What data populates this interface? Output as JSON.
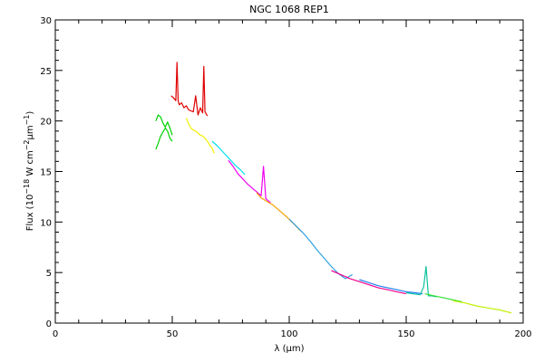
{
  "chart_data": {
    "type": "line",
    "title": "NGC 1068 REP1",
    "xlabel": "λ (μm)",
    "ylabel_prefix": "Flux (10",
    "ylabel_exp1": "−18",
    "ylabel_mid": " W cm",
    "ylabel_exp2": "−2",
    "ylabel_unit": "μm",
    "ylabel_exp3": "−1",
    "ylabel_suffix": ")",
    "xlim": [
      0,
      200
    ],
    "ylim": [
      0,
      30
    ],
    "xticks": [
      0,
      50,
      100,
      150,
      200
    ],
    "yticks": [
      0,
      5,
      10,
      15,
      20,
      25,
      30
    ],
    "grid": false,
    "series": [
      {
        "color": "#00d000",
        "x": [
          43,
          44,
          45,
          46,
          47,
          48,
          49,
          50
        ],
        "y": [
          20.0,
          20.6,
          20.4,
          19.8,
          19.4,
          19.9,
          19.3,
          18.6
        ]
      },
      {
        "color": "#00d000",
        "x": [
          43,
          44,
          45,
          46,
          47,
          48,
          49,
          50
        ],
        "y": [
          17.2,
          17.8,
          18.5,
          18.9,
          19.3,
          19.0,
          18.3,
          18.0
        ]
      },
      {
        "color": "#e00000",
        "x": [
          49.5,
          50.5,
          51.5,
          52,
          52.5,
          53,
          54,
          55,
          56,
          57,
          58,
          59,
          60,
          61,
          62,
          63,
          63.5,
          64,
          65
        ],
        "y": [
          22.5,
          22.3,
          22.0,
          25.8,
          22.0,
          21.6,
          21.8,
          21.3,
          21.5,
          21.1,
          21.0,
          20.9,
          22.5,
          20.6,
          21.3,
          20.8,
          25.4,
          20.9,
          20.5
        ]
      },
      {
        "color": "#f0f000",
        "x": [
          56,
          57,
          58,
          59,
          60,
          61,
          62,
          63,
          64,
          65,
          66,
          67,
          68
        ],
        "y": [
          20.3,
          19.7,
          19.3,
          19.1,
          19.0,
          18.8,
          18.6,
          18.5,
          18.3,
          18.0,
          17.6,
          17.3,
          16.8
        ]
      },
      {
        "color": "#00e0f0",
        "x": [
          67,
          69,
          71,
          73,
          75,
          77,
          79,
          81
        ],
        "y": [
          18.0,
          17.6,
          17.1,
          16.6,
          16.1,
          15.6,
          15.2,
          14.7
        ]
      },
      {
        "color": "#f000f0",
        "x": [
          74,
          76,
          78,
          80,
          82,
          84,
          86,
          88,
          89,
          90,
          92
        ],
        "y": [
          16.1,
          15.5,
          14.8,
          14.3,
          13.8,
          13.4,
          13.0,
          12.6,
          15.5,
          12.3,
          11.9
        ]
      },
      {
        "color": "#f0a000",
        "x": [
          86,
          88,
          90,
          93,
          96,
          99,
          102,
          105
        ],
        "y": [
          12.9,
          12.4,
          12.1,
          11.7,
          11.1,
          10.5,
          9.8,
          9.1
        ]
      },
      {
        "color": "#30a0e0",
        "x": [
          100,
          103,
          106,
          109,
          112,
          115,
          118,
          121,
          124,
          127
        ],
        "y": [
          10.3,
          9.6,
          8.9,
          8.1,
          7.2,
          6.4,
          5.6,
          4.9,
          4.4,
          4.8
        ]
      },
      {
        "color": "#f00090",
        "x": [
          118,
          122,
          126,
          130,
          134,
          138,
          142,
          146,
          150
        ],
        "y": [
          5.2,
          4.8,
          4.4,
          4.1,
          3.8,
          3.5,
          3.3,
          3.1,
          2.9
        ]
      },
      {
        "color": "#2080f0",
        "x": [
          130,
          134,
          138,
          142,
          146,
          150,
          154,
          157
        ],
        "y": [
          4.3,
          4.0,
          3.7,
          3.5,
          3.3,
          3.1,
          3.0,
          2.9
        ]
      },
      {
        "color": "#10c0a0",
        "x": [
          150,
          153,
          156,
          157.5,
          158.5,
          159.5,
          161,
          163
        ],
        "y": [
          3.0,
          2.9,
          2.8,
          3.6,
          5.6,
          2.7,
          2.7,
          2.6
        ]
      },
      {
        "color": "#30e030",
        "x": [
          158,
          162,
          166,
          170,
          174
        ],
        "y": [
          2.9,
          2.7,
          2.5,
          2.3,
          2.1
        ]
      },
      {
        "color": "#c0f000",
        "x": [
          170,
          175,
          180,
          185,
          190,
          195
        ],
        "y": [
          2.2,
          2.0,
          1.7,
          1.5,
          1.3,
          1.0
        ]
      }
    ]
  }
}
